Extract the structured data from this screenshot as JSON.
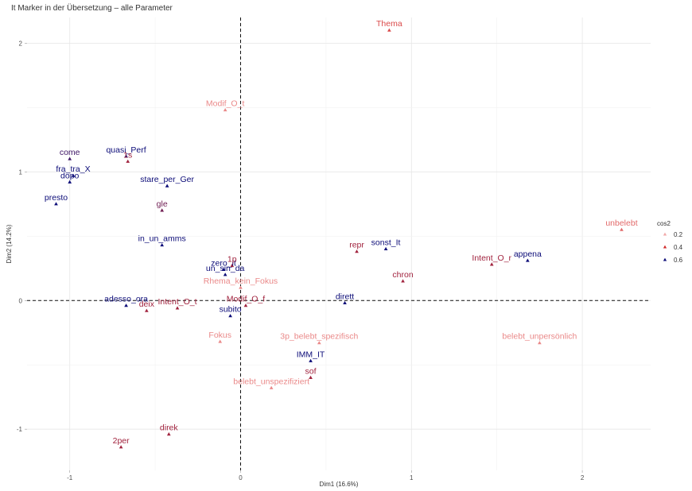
{
  "chart_data": {
    "type": "scatter",
    "title": "It Marker in der Übersetzung – alle Parameter",
    "xlabel": "Dim1 (16.6%)",
    "ylabel": "Dim2 (14.2%)",
    "xlim": [
      -1.25,
      2.4
    ],
    "ylim": [
      -1.32,
      2.2
    ],
    "xticks": [
      -1,
      0,
      1,
      2
    ],
    "yticks": [
      -1,
      0,
      1,
      2
    ],
    "grid": true,
    "reference_lines": {
      "x": 0,
      "y": 0
    },
    "legend": {
      "title": "cos2",
      "position": "right",
      "entries": [
        {
          "label": "0.2",
          "value": 0.2
        },
        {
          "label": "0.4",
          "value": 0.4
        },
        {
          "label": "0.6",
          "value": 0.6
        }
      ]
    },
    "colors": {
      "low": "#f2a8a8",
      "mid": "#d22b2b",
      "high": "#0c0c78"
    },
    "points": [
      {
        "label": "Thema",
        "x": 0.87,
        "y": 2.1,
        "cos2": 0.35,
        "group": "red"
      },
      {
        "label": "Modif_O_t",
        "x": -0.09,
        "y": 1.48,
        "cos2": 0.25,
        "group": "red"
      },
      {
        "label": "quasi_Perf",
        "x": -0.67,
        "y": 1.12,
        "cos2": 0.65,
        "group": "blue"
      },
      {
        "label": "1s",
        "x": -0.66,
        "y": 1.08,
        "cos2": 0.45,
        "group": "red"
      },
      {
        "label": "come",
        "x": -1.0,
        "y": 1.1,
        "cos2": 0.55,
        "group": "red"
      },
      {
        "label": "fra_tra_X",
        "x": -0.98,
        "y": 0.97,
        "cos2": 0.65,
        "group": "blue"
      },
      {
        "label": "dopo",
        "x": -1.0,
        "y": 0.92,
        "cos2": 0.65,
        "group": "blue"
      },
      {
        "label": "stare_per_Ger",
        "x": -0.43,
        "y": 0.89,
        "cos2": 0.65,
        "group": "blue"
      },
      {
        "label": "presto",
        "x": -1.08,
        "y": 0.75,
        "cos2": 0.65,
        "group": "blue"
      },
      {
        "label": "gle",
        "x": -0.46,
        "y": 0.7,
        "cos2": 0.5,
        "group": "red"
      },
      {
        "label": "in_un_amms",
        "x": -0.46,
        "y": 0.43,
        "cos2": 0.65,
        "group": "blue"
      },
      {
        "label": "zero_it",
        "x": -0.1,
        "y": 0.24,
        "cos2": 0.65,
        "group": "blue"
      },
      {
        "label": "1p",
        "x": -0.05,
        "y": 0.27,
        "cos2": 0.45,
        "group": "red"
      },
      {
        "label": "un_sin_da",
        "x": -0.09,
        "y": 0.2,
        "cos2": 0.65,
        "group": "blue"
      },
      {
        "label": "Rhema_kein_Fokus",
        "x": 0.0,
        "y": 0.1,
        "cos2": 0.25,
        "group": "red"
      },
      {
        "label": "repr",
        "x": 0.68,
        "y": 0.38,
        "cos2": 0.45,
        "group": "red"
      },
      {
        "label": "sonst_It",
        "x": 0.85,
        "y": 0.4,
        "cos2": 0.65,
        "group": "blue"
      },
      {
        "label": "chron",
        "x": 0.95,
        "y": 0.15,
        "cos2": 0.45,
        "group": "red"
      },
      {
        "label": "Intent_O_r",
        "x": 1.47,
        "y": 0.28,
        "cos2": 0.45,
        "group": "red"
      },
      {
        "label": "appena",
        "x": 1.68,
        "y": 0.31,
        "cos2": 0.65,
        "group": "blue"
      },
      {
        "label": "unbelebt",
        "x": 2.23,
        "y": 0.55,
        "cos2": 0.3,
        "group": "red"
      },
      {
        "label": "adesso_ora",
        "x": -0.67,
        "y": -0.04,
        "cos2": 0.65,
        "group": "blue"
      },
      {
        "label": "deix",
        "x": -0.55,
        "y": -0.08,
        "cos2": 0.45,
        "group": "red"
      },
      {
        "label": "Intent_O_t",
        "x": -0.37,
        "y": -0.06,
        "cos2": 0.45,
        "group": "red"
      },
      {
        "label": "Modif_O_f",
        "x": 0.03,
        "y": -0.04,
        "cos2": 0.45,
        "group": "red"
      },
      {
        "label": "subito",
        "x": -0.06,
        "y": -0.12,
        "cos2": 0.65,
        "group": "blue"
      },
      {
        "label": "dirett",
        "x": 0.61,
        "y": -0.02,
        "cos2": 0.65,
        "group": "blue"
      },
      {
        "label": "Fokus",
        "x": -0.12,
        "y": -0.32,
        "cos2": 0.25,
        "group": "red"
      },
      {
        "label": "3p_belebt_spezifisch",
        "x": 0.46,
        "y": -0.33,
        "cos2": 0.25,
        "group": "red"
      },
      {
        "label": "belebt_unpersönlich",
        "x": 1.75,
        "y": -0.33,
        "cos2": 0.25,
        "group": "red"
      },
      {
        "label": "IMM_IT",
        "x": 0.41,
        "y": -0.47,
        "cos2": 0.65,
        "group": "blue"
      },
      {
        "label": "sof",
        "x": 0.41,
        "y": -0.6,
        "cos2": 0.45,
        "group": "red"
      },
      {
        "label": "belebt_unspezifiziert",
        "x": 0.18,
        "y": -0.68,
        "cos2": 0.25,
        "group": "red"
      },
      {
        "label": "direk",
        "x": -0.42,
        "y": -1.04,
        "cos2": 0.45,
        "group": "red"
      },
      {
        "label": "2per",
        "x": -0.7,
        "y": -1.14,
        "cos2": 0.45,
        "group": "red"
      }
    ]
  }
}
